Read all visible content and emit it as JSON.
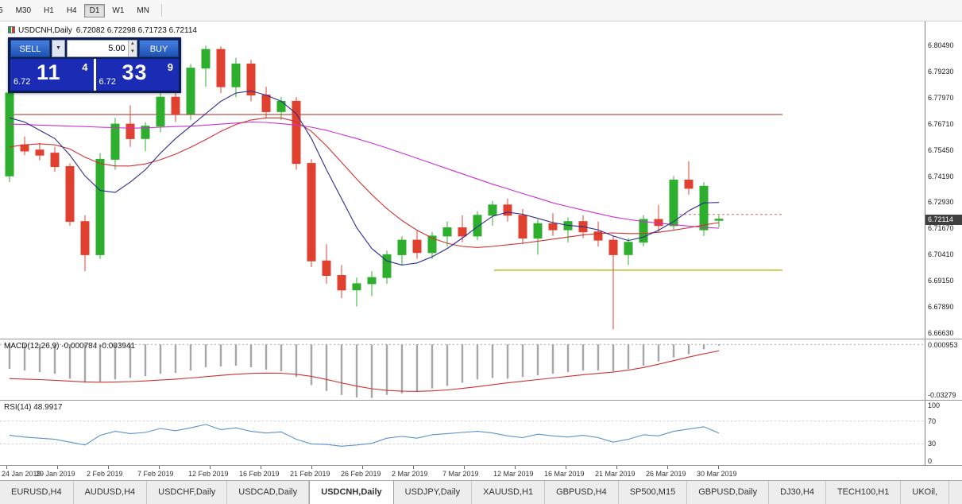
{
  "toolbar": {
    "timeframes": [
      {
        "label": "5",
        "active": false
      },
      {
        "label": "M30",
        "active": false
      },
      {
        "label": "H1",
        "active": false
      },
      {
        "label": "H4",
        "active": false
      },
      {
        "label": "D1",
        "active": true
      },
      {
        "label": "W1",
        "active": false
      },
      {
        "label": "MN",
        "active": false
      }
    ]
  },
  "chart": {
    "title": "USDCNH,Daily",
    "ohlc": "6.72082 6.72298 6.71723 6.72114",
    "last_price": "6.72114",
    "price_axis_labels": [
      "6.80490",
      "6.79230",
      "6.77970",
      "6.76710",
      "6.75450",
      "6.74190",
      "6.72930",
      "6.71670",
      "6.70410",
      "6.69150",
      "6.67890",
      "6.66630"
    ]
  },
  "one_click": {
    "sell_label": "SELL",
    "buy_label": "BUY",
    "volume": "5.00",
    "sell_price_small": "6.72",
    "sell_price_big": "11",
    "sell_price_sup": "4",
    "buy_price_small": "6.72",
    "buy_price_big": "33",
    "buy_price_sup": "9"
  },
  "macd": {
    "label": "MACD(12,26,9) -0.000784 -0.003941",
    "axis_max": "0.000953",
    "axis_min": "-0.03279"
  },
  "rsi": {
    "label": "RSI(14) 48.9917",
    "axis_labels": [
      "100",
      "70",
      "30",
      "0"
    ]
  },
  "date_axis": [
    "24 Jan 2019",
    "29 Jan 2019",
    "2 Feb 2019",
    "7 Feb 2019",
    "12 Feb 2019",
    "16 Feb 2019",
    "21 Feb 2019",
    "26 Feb 2019",
    "2 Mar 2019",
    "7 Mar 2019",
    "12 Mar 2019",
    "16 Mar 2019",
    "21 Mar 2019",
    "26 Mar 2019",
    "30 Mar 2019"
  ],
  "tabs": [
    {
      "label": "EURUSD,H4",
      "active": false
    },
    {
      "label": "AUDUSD,H4",
      "active": false
    },
    {
      "label": "USDCHF,Daily",
      "active": false
    },
    {
      "label": "USDCAD,Daily",
      "active": false
    },
    {
      "label": "USDCNH,Daily",
      "active": true
    },
    {
      "label": "USDJPY,Daily",
      "active": false
    },
    {
      "label": "XAUUSD,H1",
      "active": false
    },
    {
      "label": "GBPUSD,H4",
      "active": false
    },
    {
      "label": "SP500,M15",
      "active": false
    },
    {
      "label": "GBPUSD,Daily",
      "active": false
    },
    {
      "label": "DJ30,H4",
      "active": false
    },
    {
      "label": "TECH100,H1",
      "active": false
    },
    {
      "label": "UKOil,",
      "active": false
    }
  ],
  "colors": {
    "bull": "#2dae2d",
    "bear": "#e0402e",
    "ma_fast": "#2b2b8f",
    "ma_mid": "#cc3333",
    "ma_slow": "#cc2fcc",
    "macd_hist": "#a6a6a6",
    "macd_signal": "#cc3333",
    "rsi_line": "#5b92c9",
    "level_dash": "#c9c9dd"
  },
  "chart_data": {
    "type": "candlestick",
    "symbol": "USDCNH",
    "timeframe": "Daily",
    "ylim": [
      6.6635,
      6.8165
    ],
    "candles": [
      [
        6.742,
        6.7845,
        6.739,
        6.782
      ],
      [
        6.757,
        6.761,
        6.752,
        6.754
      ],
      [
        6.7545,
        6.758,
        6.7495,
        6.752
      ],
      [
        6.753,
        6.756,
        6.744,
        6.7465
      ],
      [
        6.7465,
        6.748,
        6.718,
        6.72
      ],
      [
        6.72,
        6.723,
        6.696,
        6.704
      ],
      [
        6.704,
        6.753,
        6.702,
        6.75
      ],
      [
        6.75,
        6.77,
        6.745,
        6.767
      ],
      [
        6.767,
        6.776,
        6.756,
        6.76
      ],
      [
        6.76,
        6.768,
        6.754,
        6.766
      ],
      [
        6.766,
        6.782,
        6.763,
        6.78
      ],
      [
        6.78,
        6.784,
        6.768,
        6.772
      ],
      [
        6.772,
        6.796,
        6.769,
        6.794
      ],
      [
        6.794,
        6.8049,
        6.785,
        6.803
      ],
      [
        6.803,
        6.8045,
        6.782,
        6.785
      ],
      [
        6.785,
        6.799,
        6.78,
        6.796
      ],
      [
        6.796,
        6.798,
        6.778,
        6.781
      ],
      [
        6.781,
        6.785,
        6.77,
        6.773
      ],
      [
        6.773,
        6.78,
        6.769,
        6.778
      ],
      [
        6.778,
        6.78,
        6.745,
        6.748
      ],
      [
        6.748,
        6.75,
        6.698,
        6.701
      ],
      [
        6.701,
        6.709,
        6.69,
        6.694
      ],
      [
        6.694,
        6.699,
        6.683,
        6.687
      ],
      [
        6.687,
        6.693,
        6.679,
        6.69
      ],
      [
        6.69,
        6.696,
        6.684,
        6.693
      ],
      [
        6.693,
        6.706,
        6.69,
        6.704
      ],
      [
        6.704,
        6.713,
        6.699,
        6.711
      ],
      [
        6.711,
        6.716,
        6.702,
        6.705
      ],
      [
        6.705,
        6.715,
        6.702,
        6.713
      ],
      [
        6.713,
        6.72,
        6.708,
        6.717
      ],
      [
        6.717,
        6.723,
        6.71,
        6.713
      ],
      [
        6.713,
        6.725,
        6.711,
        6.723
      ],
      [
        6.723,
        6.73,
        6.718,
        6.728
      ],
      [
        6.728,
        6.731,
        6.72,
        6.723
      ],
      [
        6.723,
        6.726,
        6.709,
        6.712
      ],
      [
        6.712,
        6.721,
        6.704,
        6.719
      ],
      [
        6.719,
        6.724,
        6.713,
        6.716
      ],
      [
        6.716,
        6.722,
        6.71,
        6.72
      ],
      [
        6.72,
        6.723,
        6.712,
        6.715
      ],
      [
        6.715,
        6.72,
        6.708,
        6.711
      ],
      [
        6.711,
        6.713,
        6.668,
        6.704
      ],
      [
        6.704,
        6.712,
        6.699,
        6.71
      ],
      [
        6.71,
        6.723,
        6.708,
        6.721
      ],
      [
        6.721,
        6.728,
        6.715,
        6.718
      ],
      [
        6.718,
        6.742,
        6.716,
        6.74
      ],
      [
        6.74,
        6.749,
        6.733,
        6.736
      ],
      [
        6.716,
        6.739,
        6.713,
        6.737
      ],
      [
        6.72082,
        6.72298,
        6.71723,
        6.72114
      ]
    ],
    "ma_fast_blue": [
      6.77,
      6.768,
      6.764,
      6.76,
      6.752,
      6.742,
      6.735,
      6.734,
      6.739,
      6.745,
      6.753,
      6.76,
      6.766,
      6.772,
      6.778,
      6.782,
      6.783,
      6.781,
      6.778,
      6.772,
      6.76,
      6.745,
      6.731,
      6.717,
      6.707,
      6.701,
      6.699,
      6.7,
      6.703,
      6.707,
      6.712,
      6.7175,
      6.7225,
      6.7245,
      6.7235,
      6.7215,
      6.7195,
      6.7182,
      6.7175,
      6.716,
      6.713,
      6.7108,
      6.7125,
      6.7158,
      6.72,
      6.7252,
      6.729,
      6.7292
    ],
    "ma_mid_red": [
      6.756,
      6.757,
      6.7575,
      6.757,
      6.755,
      6.751,
      6.748,
      6.7468,
      6.7468,
      6.7478,
      6.7498,
      6.7525,
      6.7558,
      6.7595,
      6.7635,
      6.7668,
      6.769,
      6.77,
      6.77,
      6.7682,
      6.7635,
      6.7565,
      6.7485,
      6.7405,
      6.733,
      6.7262,
      6.7205,
      6.7158,
      6.712,
      6.7095,
      6.708,
      6.7075,
      6.708,
      6.7088,
      6.7095,
      6.7105,
      6.7115,
      6.7125,
      6.7135,
      6.7142,
      6.7145,
      6.7142,
      6.7142,
      6.7148,
      6.7158,
      6.717,
      6.7183,
      6.7195
    ],
    "ma_slow_magenta": [
      6.767,
      6.7668,
      6.7665,
      6.7663,
      6.766,
      6.7658,
      6.7655,
      6.7653,
      6.765,
      6.7652,
      6.7655,
      6.7658,
      6.766,
      6.7665,
      6.767,
      6.7675,
      6.768,
      6.7678,
      6.7672,
      6.7665,
      6.7655,
      6.764,
      6.762,
      6.76,
      6.7578,
      6.7555,
      6.753,
      6.7505,
      6.748,
      6.7455,
      6.743,
      6.7405,
      6.738,
      6.7358,
      6.7335,
      6.7313,
      6.729,
      6.7272,
      6.7255,
      6.7238,
      6.7222,
      6.721,
      6.72,
      6.7192,
      6.7185,
      6.7178,
      6.7172,
      6.7168
    ],
    "hlines": [
      {
        "price": 6.7716,
        "color": "#c05050",
        "x1": 8,
        "x2": 985
      },
      {
        "price": 6.6965,
        "color": "#aab000",
        "x1": 622,
        "x2": 985
      }
    ],
    "ask_line": {
      "price": 6.7234,
      "color": "#e06060",
      "x1": 855,
      "x2": 985
    },
    "macd": {
      "ylim": [
        -0.034,
        0.003
      ],
      "histogram": [
        -0.015,
        -0.016,
        -0.017,
        -0.018,
        -0.021,
        -0.0235,
        -0.023,
        -0.0215,
        -0.0205,
        -0.0195,
        -0.018,
        -0.0175,
        -0.016,
        -0.014,
        -0.0135,
        -0.013,
        -0.014,
        -0.0155,
        -0.0165,
        -0.02,
        -0.025,
        -0.0285,
        -0.031,
        -0.0325,
        -0.03279,
        -0.031,
        -0.03,
        -0.029,
        -0.027,
        -0.0255,
        -0.0235,
        -0.0215,
        -0.0205,
        -0.021,
        -0.02,
        -0.019,
        -0.018,
        -0.017,
        -0.016,
        -0.016,
        -0.0165,
        -0.015,
        -0.013,
        -0.0105,
        -0.008,
        -0.006,
        -0.003,
        -0.000784
      ],
      "signal": [
        -0.021,
        -0.0213,
        -0.0216,
        -0.022,
        -0.0225,
        -0.023,
        -0.0232,
        -0.0231,
        -0.0228,
        -0.0224,
        -0.0219,
        -0.0213,
        -0.0206,
        -0.0198,
        -0.019,
        -0.0183,
        -0.0178,
        -0.0176,
        -0.0177,
        -0.0183,
        -0.0196,
        -0.0215,
        -0.0236,
        -0.0256,
        -0.0272,
        -0.0282,
        -0.0287,
        -0.0288,
        -0.0285,
        -0.0279,
        -0.027,
        -0.0259,
        -0.0247,
        -0.0236,
        -0.0226,
        -0.0216,
        -0.0206,
        -0.0196,
        -0.0186,
        -0.0178,
        -0.017,
        -0.0158,
        -0.0142,
        -0.0122,
        -0.01,
        -0.0078,
        -0.0058,
        -0.003941
      ]
    },
    "rsi": {
      "ylim": [
        0,
        100
      ],
      "levels": [
        70,
        30
      ],
      "values": [
        45,
        42,
        40,
        38,
        33,
        28,
        45,
        52,
        48,
        50,
        57,
        53,
        58,
        64,
        55,
        58,
        52,
        49,
        51,
        38,
        30,
        29,
        26,
        28,
        31,
        40,
        43,
        40,
        46,
        48,
        50,
        52,
        49,
        44,
        41,
        47,
        44,
        42,
        45,
        41,
        33,
        38,
        46,
        44,
        52,
        56,
        60,
        48.9917
      ]
    }
  }
}
